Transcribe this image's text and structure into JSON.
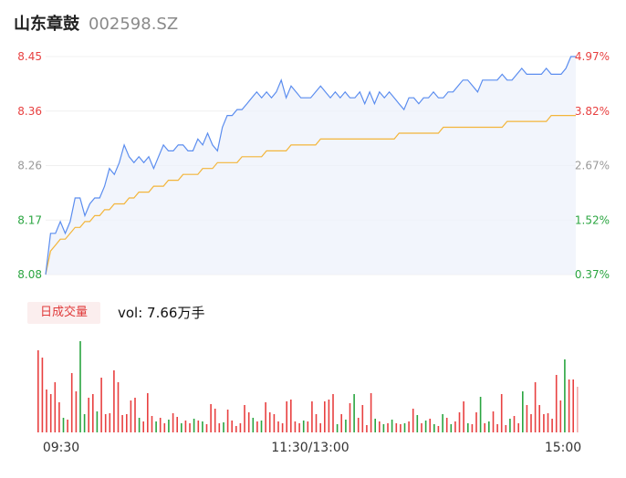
{
  "header": {
    "name": "山东章鼓",
    "code": "002598.SZ"
  },
  "volume": {
    "tab_label": "日成交量",
    "vol_prefix": "vol: ",
    "vol_value": "7.66万手"
  },
  "colors": {
    "price_line": "#5b8def",
    "avg_line": "#f3b53a",
    "up": "#e84040",
    "down": "#2aa540",
    "grid": "#f0f0f0",
    "area": "#eef2fb"
  },
  "chart_data": {
    "type": "line",
    "price_labels_left": [
      "8.45",
      "8.36",
      "8.26",
      "8.17",
      "8.08"
    ],
    "pct_labels_right": [
      "4.97%",
      "3.82%",
      "2.67%",
      "1.52%",
      "0.37%"
    ],
    "ylim": [
      8.08,
      8.45
    ],
    "x_ticks": [
      "09:30",
      "11:30/13:00",
      "15:00"
    ],
    "series": [
      {
        "values": [
          8.08,
          8.15,
          8.15,
          8.17,
          8.15,
          8.17,
          8.21,
          8.21,
          8.18,
          8.2,
          8.21,
          8.21,
          8.23,
          8.26,
          8.25,
          8.27,
          8.3,
          8.28,
          8.27,
          8.28,
          8.27,
          8.28,
          8.26,
          8.28,
          8.3,
          8.29,
          8.29,
          8.3,
          8.3,
          8.29,
          8.29,
          8.31,
          8.3,
          8.32,
          8.3,
          8.29,
          8.33,
          8.35,
          8.35,
          8.36,
          8.36,
          8.37,
          8.38,
          8.39,
          8.38,
          8.39,
          8.38,
          8.39,
          8.41,
          8.38,
          8.4,
          8.39,
          8.38,
          8.38,
          8.38,
          8.39,
          8.4,
          8.39,
          8.38,
          8.39,
          8.38,
          8.39,
          8.38,
          8.38,
          8.39,
          8.37,
          8.39,
          8.37,
          8.39,
          8.38,
          8.39,
          8.38,
          8.37,
          8.36,
          8.38,
          8.38,
          8.37,
          8.38,
          8.38,
          8.39,
          8.38,
          8.38,
          8.39,
          8.39,
          8.4,
          8.41,
          8.41,
          8.4,
          8.39,
          8.41,
          8.41,
          8.41,
          8.41,
          8.42,
          8.41,
          8.41,
          8.42,
          8.43,
          8.42,
          8.42,
          8.42,
          8.42,
          8.43,
          8.42,
          8.42,
          8.42,
          8.43,
          8.45,
          8.45
        ]
      },
      {
        "values": [
          8.08,
          8.12,
          8.13,
          8.14,
          8.14,
          8.15,
          8.16,
          8.16,
          8.17,
          8.17,
          8.18,
          8.18,
          8.19,
          8.19,
          8.2,
          8.2,
          8.2,
          8.21,
          8.21,
          8.22,
          8.22,
          8.22,
          8.23,
          8.23,
          8.23,
          8.24,
          8.24,
          8.24,
          8.25,
          8.25,
          8.25,
          8.25,
          8.26,
          8.26,
          8.26,
          8.27,
          8.27,
          8.27,
          8.27,
          8.27,
          8.28,
          8.28,
          8.28,
          8.28,
          8.28,
          8.29,
          8.29,
          8.29,
          8.29,
          8.29,
          8.3,
          8.3,
          8.3,
          8.3,
          8.3,
          8.3,
          8.31,
          8.31,
          8.31,
          8.31,
          8.31,
          8.31,
          8.31,
          8.31,
          8.31,
          8.31,
          8.31,
          8.31,
          8.31,
          8.31,
          8.31,
          8.31,
          8.32,
          8.32,
          8.32,
          8.32,
          8.32,
          8.32,
          8.32,
          8.32,
          8.32,
          8.33,
          8.33,
          8.33,
          8.33,
          8.33,
          8.33,
          8.33,
          8.33,
          8.33,
          8.33,
          8.33,
          8.33,
          8.33,
          8.34,
          8.34,
          8.34,
          8.34,
          8.34,
          8.34,
          8.34,
          8.34,
          8.34,
          8.35,
          8.35,
          8.35,
          8.35,
          8.35,
          8.35
        ]
      }
    ],
    "volume_bars": [
      {
        "v": 0.9,
        "c": "up"
      },
      {
        "v": 0.82,
        "c": "up"
      },
      {
        "v": 0.47,
        "c": "up"
      },
      {
        "v": 0.42,
        "c": "up"
      },
      {
        "v": 0.55,
        "c": "up"
      },
      {
        "v": 0.33,
        "c": "up"
      },
      {
        "v": 0.16,
        "c": "down"
      },
      {
        "v": 0.14,
        "c": "up"
      },
      {
        "v": 0.65,
        "c": "up"
      },
      {
        "v": 0.45,
        "c": "up"
      },
      {
        "v": 1.0,
        "c": "down"
      },
      {
        "v": 0.2,
        "c": "down"
      },
      {
        "v": 0.38,
        "c": "up"
      },
      {
        "v": 0.42,
        "c": "up"
      },
      {
        "v": 0.23,
        "c": "down"
      },
      {
        "v": 0.6,
        "c": "up"
      },
      {
        "v": 0.2,
        "c": "up"
      },
      {
        "v": 0.21,
        "c": "up"
      },
      {
        "v": 0.68,
        "c": "up"
      },
      {
        "v": 0.55,
        "c": "up"
      },
      {
        "v": 0.19,
        "c": "up"
      },
      {
        "v": 0.2,
        "c": "up"
      },
      {
        "v": 0.35,
        "c": "up"
      },
      {
        "v": 0.38,
        "c": "up"
      },
      {
        "v": 0.16,
        "c": "down"
      },
      {
        "v": 0.12,
        "c": "up"
      },
      {
        "v": 0.43,
        "c": "up"
      },
      {
        "v": 0.18,
        "c": "up"
      },
      {
        "v": 0.12,
        "c": "down"
      },
      {
        "v": 0.16,
        "c": "up"
      },
      {
        "v": 0.1,
        "c": "up"
      },
      {
        "v": 0.14,
        "c": "down"
      },
      {
        "v": 0.21,
        "c": "up"
      },
      {
        "v": 0.17,
        "c": "up"
      },
      {
        "v": 0.1,
        "c": "down"
      },
      {
        "v": 0.13,
        "c": "up"
      },
      {
        "v": 0.1,
        "c": "up"
      },
      {
        "v": 0.15,
        "c": "down"
      },
      {
        "v": 0.13,
        "c": "up"
      },
      {
        "v": 0.12,
        "c": "down"
      },
      {
        "v": 0.09,
        "c": "up"
      },
      {
        "v": 0.31,
        "c": "up"
      },
      {
        "v": 0.26,
        "c": "up"
      },
      {
        "v": 0.1,
        "c": "up"
      },
      {
        "v": 0.11,
        "c": "down"
      },
      {
        "v": 0.25,
        "c": "up"
      },
      {
        "v": 0.13,
        "c": "up"
      },
      {
        "v": 0.07,
        "c": "up"
      },
      {
        "v": 0.1,
        "c": "up"
      },
      {
        "v": 0.3,
        "c": "up"
      },
      {
        "v": 0.22,
        "c": "up"
      },
      {
        "v": 0.16,
        "c": "down"
      },
      {
        "v": 0.12,
        "c": "up"
      },
      {
        "v": 0.13,
        "c": "down"
      },
      {
        "v": 0.33,
        "c": "up"
      },
      {
        "v": 0.22,
        "c": "up"
      },
      {
        "v": 0.2,
        "c": "up"
      },
      {
        "v": 0.12,
        "c": "up"
      },
      {
        "v": 0.1,
        "c": "up"
      },
      {
        "v": 0.34,
        "c": "up"
      },
      {
        "v": 0.36,
        "c": "up"
      },
      {
        "v": 0.12,
        "c": "up"
      },
      {
        "v": 0.1,
        "c": "up"
      },
      {
        "v": 0.13,
        "c": "down"
      },
      {
        "v": 0.12,
        "c": "up"
      },
      {
        "v": 0.34,
        "c": "up"
      },
      {
        "v": 0.2,
        "c": "up"
      },
      {
        "v": 0.1,
        "c": "up"
      },
      {
        "v": 0.34,
        "c": "up"
      },
      {
        "v": 0.36,
        "c": "up"
      },
      {
        "v": 0.42,
        "c": "up"
      },
      {
        "v": 0.09,
        "c": "down"
      },
      {
        "v": 0.2,
        "c": "up"
      },
      {
        "v": 0.14,
        "c": "down"
      },
      {
        "v": 0.32,
        "c": "up"
      },
      {
        "v": 0.42,
        "c": "down"
      },
      {
        "v": 0.16,
        "c": "up"
      },
      {
        "v": 0.3,
        "c": "up"
      },
      {
        "v": 0.08,
        "c": "up"
      },
      {
        "v": 0.43,
        "c": "up"
      },
      {
        "v": 0.15,
        "c": "down"
      },
      {
        "v": 0.12,
        "c": "up"
      },
      {
        "v": 0.09,
        "c": "down"
      },
      {
        "v": 0.1,
        "c": "up"
      },
      {
        "v": 0.14,
        "c": "down"
      },
      {
        "v": 0.1,
        "c": "up"
      },
      {
        "v": 0.09,
        "c": "up"
      },
      {
        "v": 0.1,
        "c": "down"
      },
      {
        "v": 0.12,
        "c": "up"
      },
      {
        "v": 0.26,
        "c": "up"
      },
      {
        "v": 0.19,
        "c": "down"
      },
      {
        "v": 0.1,
        "c": "up"
      },
      {
        "v": 0.13,
        "c": "down"
      },
      {
        "v": 0.15,
        "c": "up"
      },
      {
        "v": 0.09,
        "c": "down"
      },
      {
        "v": 0.07,
        "c": "up"
      },
      {
        "v": 0.2,
        "c": "down"
      },
      {
        "v": 0.16,
        "c": "up"
      },
      {
        "v": 0.09,
        "c": "down"
      },
      {
        "v": 0.12,
        "c": "up"
      },
      {
        "v": 0.22,
        "c": "up"
      },
      {
        "v": 0.34,
        "c": "up"
      },
      {
        "v": 0.1,
        "c": "down"
      },
      {
        "v": 0.09,
        "c": "up"
      },
      {
        "v": 0.22,
        "c": "up"
      },
      {
        "v": 0.39,
        "c": "down"
      },
      {
        "v": 0.1,
        "c": "up"
      },
      {
        "v": 0.12,
        "c": "down"
      },
      {
        "v": 0.23,
        "c": "up"
      },
      {
        "v": 0.09,
        "c": "up"
      },
      {
        "v": 0.42,
        "c": "up"
      },
      {
        "v": 0.08,
        "c": "up"
      },
      {
        "v": 0.15,
        "c": "down"
      },
      {
        "v": 0.18,
        "c": "up"
      },
      {
        "v": 0.1,
        "c": "up"
      },
      {
        "v": 0.45,
        "c": "down"
      },
      {
        "v": 0.3,
        "c": "up"
      },
      {
        "v": 0.2,
        "c": "up"
      },
      {
        "v": 0.55,
        "c": "up"
      },
      {
        "v": 0.3,
        "c": "up"
      },
      {
        "v": 0.2,
        "c": "up"
      },
      {
        "v": 0.21,
        "c": "up"
      },
      {
        "v": 0.15,
        "c": "up"
      },
      {
        "v": 0.63,
        "c": "up"
      },
      {
        "v": 0.35,
        "c": "up"
      },
      {
        "v": 0.8,
        "c": "down"
      },
      {
        "v": 0.58,
        "c": "up"
      },
      {
        "v": 0.58,
        "c": "up"
      }
    ]
  }
}
